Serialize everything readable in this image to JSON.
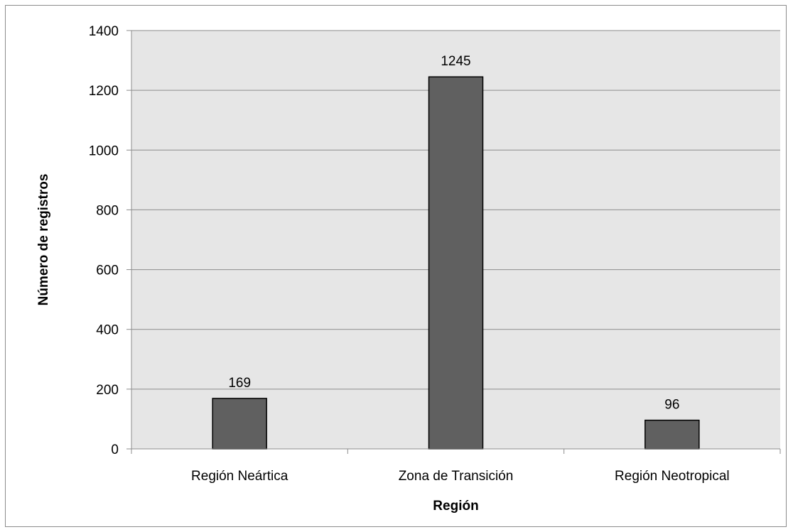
{
  "chart_data": {
    "type": "bar",
    "title": "",
    "xlabel": "Región",
    "ylabel": "Número de registros",
    "categories": [
      "Región Neártica",
      "Zona de Transición",
      "Región Neotropical"
    ],
    "values": [
      169,
      1245,
      96
    ],
    "data_labels": [
      "169",
      "1245",
      "96"
    ],
    "ylim": [
      0,
      1400
    ],
    "yticks": [
      0,
      200,
      400,
      600,
      800,
      1000,
      1200,
      1400
    ],
    "ytick_labels": [
      "0",
      "200",
      "400",
      "600",
      "800",
      "1000",
      "1200",
      "1400"
    ],
    "grid": true,
    "legend": "none",
    "colors": {
      "bar_fill": "#606060",
      "bar_stroke": "#000000",
      "plot_background": "#e6e6e6",
      "gridline": "#8c8c8c"
    }
  }
}
